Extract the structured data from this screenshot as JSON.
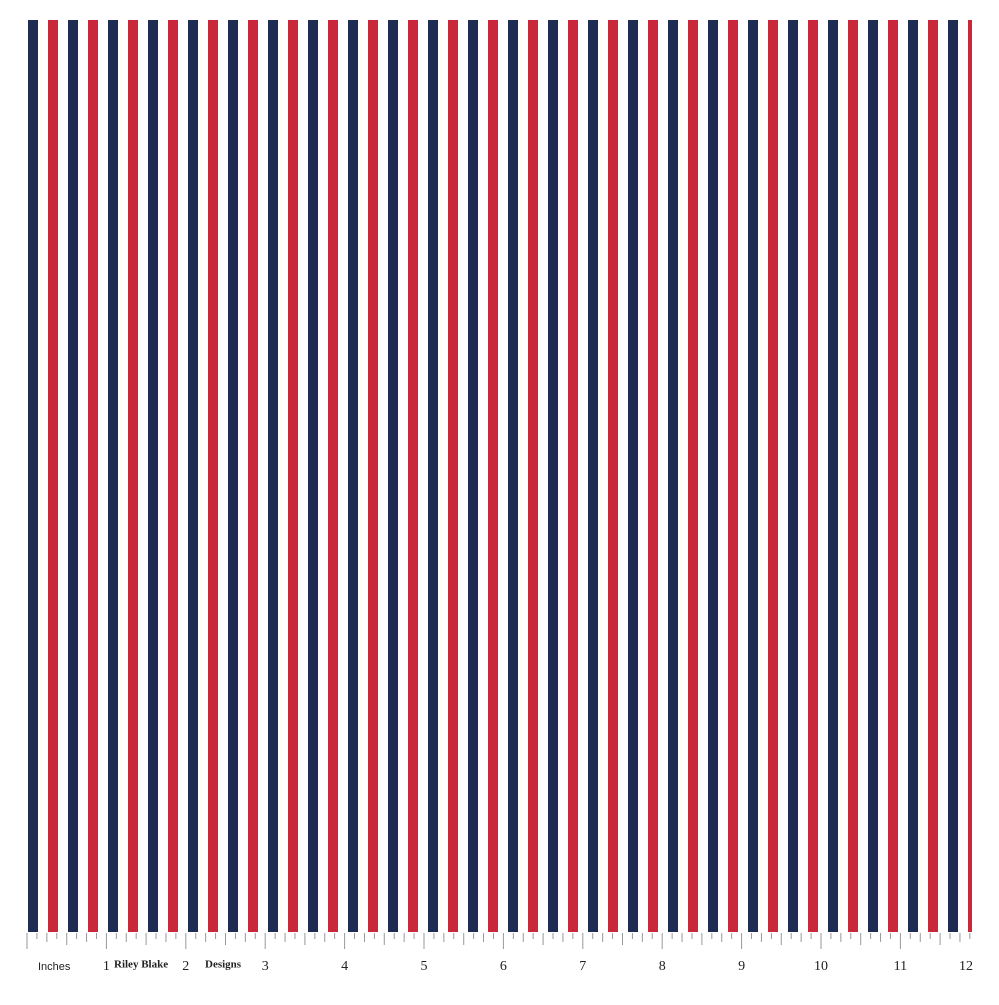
{
  "ruler": {
    "unit_label": "Inches",
    "numbers": [
      "1",
      "2",
      "3",
      "4",
      "5",
      "6",
      "7",
      "8",
      "9",
      "10",
      "11",
      "12"
    ],
    "brand": [
      "Riley Blake",
      "Designs"
    ]
  }
}
